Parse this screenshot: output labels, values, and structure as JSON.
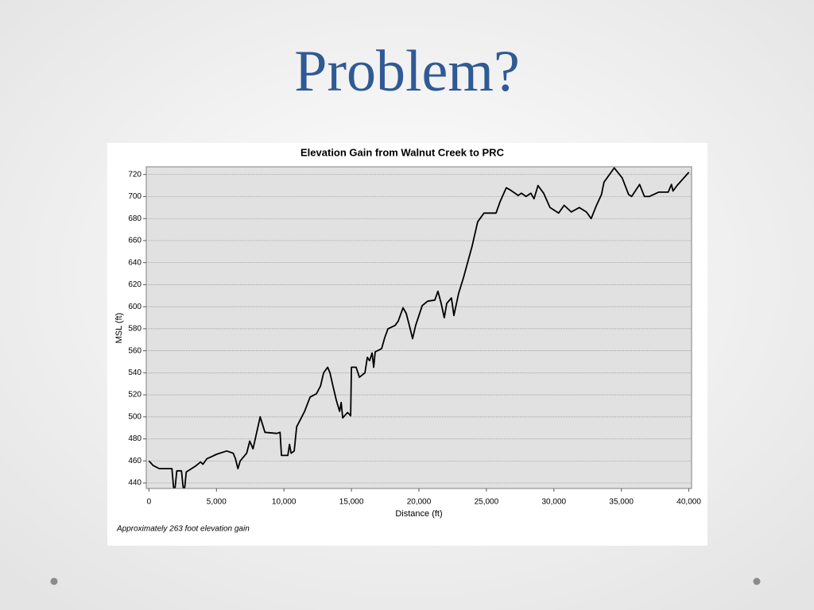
{
  "slide": {
    "title": "Problem?"
  },
  "chart_data": {
    "type": "line",
    "title": "Elevation Gain from Walnut Creek to PRC",
    "x_label": "Distance (ft)",
    "y_label": "MSL (ft)",
    "annotation": "Approximately 263 foot elevation gain",
    "color": "#000000",
    "grid": true,
    "xlim": [
      -200,
      40200
    ],
    "ylim": [
      435,
      727
    ],
    "xticks": [
      0,
      {
        "value": 5000,
        "label": "5,000"
      },
      {
        "value": 10000,
        "label": "10,000"
      },
      {
        "value": 15000,
        "label": "15,000"
      },
      {
        "value": 20000,
        "label": "20,000"
      },
      {
        "value": 25000,
        "label": "25,000"
      },
      {
        "value": 30000,
        "label": "30,000"
      },
      {
        "value": 35000,
        "label": "35,000"
      },
      {
        "value": 40000,
        "label": "40,000"
      }
    ],
    "yticks": [
      440,
      460,
      480,
      500,
      520,
      540,
      560,
      580,
      600,
      620,
      640,
      660,
      680,
      700,
      720
    ],
    "x": [
      0,
      300,
      760,
      1530,
      1700,
      1820,
      1940,
      2060,
      2410,
      2530,
      2650,
      2760,
      3410,
      3820,
      4000,
      4290,
      4650,
      5000,
      5760,
      6240,
      6410,
      6590,
      6760,
      7240,
      7470,
      7710,
      8240,
      8590,
      9470,
      9710,
      9820,
      10290,
      10410,
      10530,
      10760,
      10940,
      11530,
      11940,
      12410,
      12710,
      12940,
      13240,
      13410,
      13650,
      13880,
      14120,
      14240,
      14350,
      14710,
      14940,
      15000,
      15350,
      15590,
      16000,
      16180,
      16350,
      16530,
      16650,
      16760,
      17240,
      17470,
      17710,
      18240,
      18470,
      18820,
      19060,
      19350,
      19530,
      19760,
      20240,
      20650,
      21180,
      21410,
      21650,
      21880,
      22060,
      22410,
      22590,
      22940,
      23290,
      23940,
      24350,
      24820,
      25710,
      26000,
      26470,
      26760,
      27120,
      27350,
      27590,
      27940,
      28290,
      28530,
      28820,
      29240,
      29710,
      30350,
      30760,
      31290,
      31880,
      32410,
      32760,
      33120,
      33530,
      33710,
      34470,
      35060,
      35530,
      35760,
      36350,
      36710,
      37060,
      37760,
      38470,
      38710,
      38820,
      39120,
      40000
    ],
    "values": [
      460,
      456,
      453,
      453,
      453,
      436,
      436,
      451,
      451,
      436,
      436,
      450,
      455,
      459,
      457,
      462,
      464,
      466,
      469,
      467,
      462,
      453,
      460,
      467,
      478,
      471,
      500,
      486,
      485,
      486,
      465,
      465,
      475,
      467,
      469,
      491,
      505,
      518,
      521,
      528,
      540,
      545,
      540,
      527,
      515,
      505,
      513,
      499,
      504,
      501,
      545,
      545,
      536,
      540,
      554,
      551,
      558,
      545,
      559,
      562,
      572,
      580,
      583,
      587,
      599,
      594,
      580,
      571,
      583,
      601,
      605,
      606,
      614,
      603,
      590,
      603,
      608,
      592,
      612,
      626,
      655,
      677,
      685,
      685,
      695,
      708,
      706,
      703,
      701,
      703,
      700,
      703,
      698,
      710,
      703,
      690,
      685,
      692,
      686,
      690,
      686,
      680,
      691,
      702,
      713,
      726,
      717,
      702,
      700,
      711,
      700,
      700,
      704,
      704,
      711,
      705,
      710,
      722
    ]
  }
}
